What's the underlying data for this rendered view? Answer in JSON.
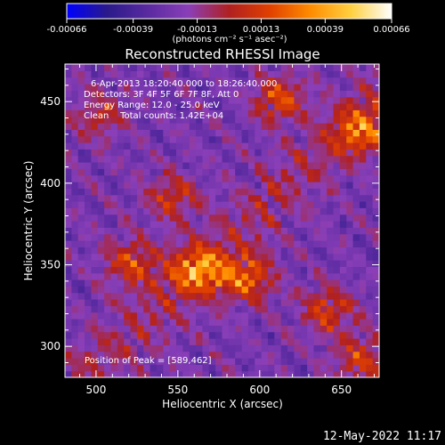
{
  "chart_data": {
    "type": "heatmap",
    "title": "Reconstructed RHESSI Image",
    "xlabel": "Heliocentric X (arcsec)",
    "ylabel": "Heliocentric Y (arcsec)",
    "xlim": [
      481,
      673
    ],
    "ylim": [
      281,
      473
    ],
    "xticks": [
      500,
      550,
      600,
      650
    ],
    "yticks": [
      300,
      350,
      400,
      450
    ],
    "colorbar": {
      "label": "(photons cm⁻² s⁻¹ asec⁻²)",
      "ticks": [
        "-0.00066",
        "-0.00039",
        "-0.00013",
        "0.00013",
        "0.00039",
        "0.00066"
      ],
      "range": [
        -0.00066,
        0.00066
      ],
      "colormap": [
        "#0000ff",
        "#2a1a8a",
        "#5a2aa0",
        "#8a3fb8",
        "#b02020",
        "#e04000",
        "#ff8c00",
        "#ffd040",
        "#ffffff"
      ]
    },
    "annotations": [
      "6-Apr-2013 18:20:40.000 to 18:26:40.000",
      "Detectors: 3F 4F 5F 6F 7F 8F, Att 0",
      "Energy Range: 12.0 - 25.0 keV",
      "Clean    Total counts: 1.42E+04"
    ],
    "peak_label": "Position of Peak = [589,462]",
    "peak": [
      589,
      462
    ],
    "emission_features": [
      {
        "x": 545,
        "y": 390,
        "intensity": 0.6
      },
      {
        "x": 560,
        "y": 345,
        "intensity": 1.0
      },
      {
        "x": 590,
        "y": 340,
        "intensity": 0.9
      },
      {
        "x": 520,
        "y": 350,
        "intensity": 0.7
      },
      {
        "x": 610,
        "y": 450,
        "intensity": 0.75
      },
      {
        "x": 660,
        "y": 430,
        "intensity": 0.8
      },
      {
        "x": 640,
        "y": 320,
        "intensity": 0.7
      },
      {
        "x": 660,
        "y": 290,
        "intensity": 0.65
      },
      {
        "x": 500,
        "y": 440,
        "intensity": 0.5
      }
    ]
  },
  "footer": {
    "timestamp": "12-May-2022 11:17"
  }
}
